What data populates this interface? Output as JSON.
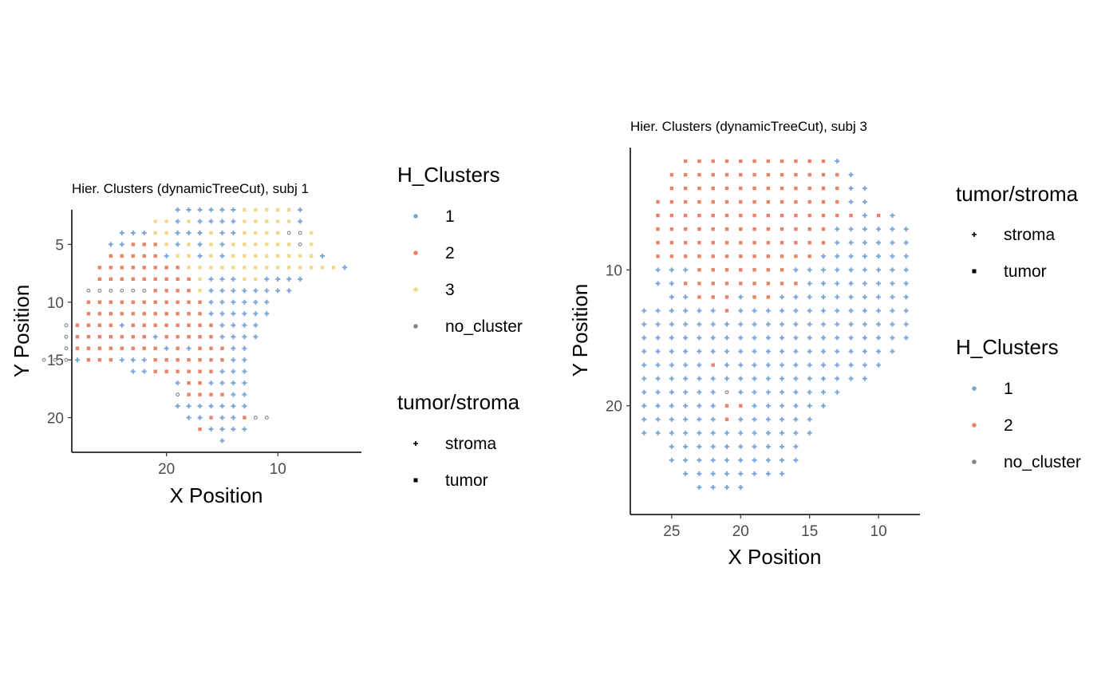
{
  "colors": {
    "1": "#7aa6d8",
    "2": "#e8836a",
    "3": "#f2d98a",
    "no_cluster": "#858585"
  },
  "chart_data": [
    {
      "type": "scatter",
      "title": "Hier. Clusters (dynamicTreeCut), subj 1",
      "xlabel": "X Position",
      "ylabel": "Y Position",
      "x_reversed": true,
      "y_reversed": true,
      "xlim": [
        28.5,
        2.5
      ],
      "ylim": [
        2.0,
        23.0
      ],
      "xticks": [
        20,
        10
      ],
      "yticks": [
        5,
        10,
        15,
        20
      ],
      "legends": [
        {
          "title": "H_Clusters",
          "items": [
            {
              "label": "1",
              "key": "1"
            },
            {
              "label": "2",
              "key": "2"
            },
            {
              "label": "3",
              "key": "3"
            },
            {
              "label": "no_cluster",
              "key": "no_cluster"
            }
          ]
        },
        {
          "title": "tumor/stroma",
          "items": [
            {
              "label": "stroma",
              "shape": "plus"
            },
            {
              "label": "tumor",
              "shape": "square"
            }
          ]
        }
      ],
      "point_rows": [
        {
          "y": 2,
          "x_from": 19,
          "x_to": 8,
          "cluster": "1",
          "overrides": {
            "13": "3",
            "12": "3",
            "11": "3",
            "10": "3",
            "9": "3"
          }
        },
        {
          "y": 3,
          "x_from": 21,
          "x_to": 8,
          "cluster": "1",
          "overrides": {
            "21": "3",
            "20": "3",
            "18": "3",
            "13": "3",
            "12": "3",
            "11": "3",
            "10": "3",
            "9": "3"
          }
        },
        {
          "y": 4,
          "x_from": 24,
          "x_to": 7,
          "cluster": "1",
          "overrides": {
            "21": "3",
            "20": "3",
            "16": "3",
            "13": "3",
            "12": "3",
            "11": "3",
            "10": "3",
            "9": "no_cluster",
            "8": "no_cluster",
            "7": "3"
          }
        },
        {
          "y": 5,
          "x_from": 25,
          "x_to": 7,
          "cluster": "1",
          "overrides": {
            "23": "2",
            "22": "2",
            "21": "2",
            "20": "3",
            "18": "3",
            "16": "3",
            "14": "3",
            "13": "3",
            "12": "3",
            "11": "3",
            "10": "3",
            "9": "3",
            "8": "no_cluster",
            "7": "3"
          }
        },
        {
          "y": 6,
          "x_from": 25,
          "x_to": 6,
          "cluster": "1",
          "overrides": {
            "25": "2",
            "24": "2",
            "23": "2",
            "22": "2",
            "21": "2",
            "19": "3",
            "18": "3",
            "16": "3",
            "14": "3",
            "13": "3",
            "12": "3",
            "11": "3",
            "10": "3",
            "9": "3",
            "8": "3",
            "7": "3"
          }
        },
        {
          "y": 7,
          "x_from": 26,
          "x_to": 4,
          "cluster": "1",
          "overrides": {
            "26": "2",
            "25": "2",
            "24": "2",
            "23": "2",
            "22": "2",
            "21": "2",
            "20": "2",
            "19": "2",
            "18": "3",
            "17": "3",
            "16": "3",
            "15": "3",
            "14": "3",
            "13": "3",
            "12": "3",
            "11": "3",
            "10": "3",
            "9": "3",
            "8": "3",
            "7": "3",
            "6": "3",
            "5": "3"
          }
        },
        {
          "y": 8,
          "x_from": 26,
          "x_to": 8,
          "cluster": "2",
          "overrides": {
            "17": "3",
            "16": "1",
            "15": "1",
            "14": "1",
            "13": "3",
            "12": "3",
            "11": "1",
            "10": "1",
            "9": "1",
            "8": "1"
          }
        },
        {
          "y": 9,
          "x_from": 27,
          "x_to": 9,
          "cluster": "2",
          "overrides": {
            "27": "no_cluster",
            "26": "no_cluster",
            "25": "no_cluster",
            "24": "no_cluster",
            "23": "no_cluster",
            "22": "no_cluster",
            "17": "3",
            "16": "1",
            "15": "1",
            "14": "1",
            "13": "1",
            "12": "1",
            "11": "1",
            "10": "1",
            "9": "1"
          }
        },
        {
          "y": 10,
          "x_from": 27,
          "x_to": 11,
          "cluster": "2",
          "overrides": {
            "16": "1",
            "15": "1",
            "14": "1",
            "13": "1",
            "12": "1",
            "11": "1"
          }
        },
        {
          "y": 11,
          "x_from": 27,
          "x_to": 11,
          "cluster": "2",
          "overrides": {
            "16": "1",
            "15": "1",
            "14": "1",
            "13": "1",
            "12": "1",
            "11": "1"
          }
        },
        {
          "y": 12,
          "x_from": 29,
          "x_to": 12,
          "cluster": "2",
          "overrides": {
            "29": "no_cluster",
            "24": "1",
            "15": "1",
            "14": "1",
            "13": "1",
            "12": "1"
          }
        },
        {
          "y": 13,
          "x_from": 29,
          "x_to": 12,
          "cluster": "2",
          "overrides": {
            "29": "no_cluster",
            "21": "1",
            "15": "1",
            "14": "1",
            "13": "1",
            "12": "1"
          }
        },
        {
          "y": 14,
          "x_from": 29,
          "x_to": 13,
          "cluster": "2",
          "overrides": {
            "29": "no_cluster",
            "20": "1",
            "18": "1",
            "14": "1",
            "13": "1"
          }
        },
        {
          "y": 15,
          "x_from": 31,
          "x_to": 13,
          "cluster": "2",
          "overrides": {
            "31": "no_cluster",
            "30": "no_cluster",
            "29": "no_cluster",
            "28": "1",
            "24": "1",
            "23": "1",
            "22": "1",
            "14": "1",
            "13": "1"
          }
        },
        {
          "y": 16,
          "x_from": 23,
          "x_to": 13,
          "cluster": "2",
          "overrides": {
            "23": "1",
            "22": "1",
            "15": "1",
            "14": "1",
            "13": "1"
          }
        },
        {
          "y": 17,
          "x_from": 19,
          "x_to": 13,
          "cluster": "1",
          "overrides": {
            "18": "2",
            "17": "2"
          }
        },
        {
          "y": 18,
          "x_from": 19,
          "x_to": 13,
          "cluster": "2",
          "overrides": {
            "19": "no_cluster",
            "14": "1",
            "13": "1"
          }
        },
        {
          "y": 19,
          "x_from": 19,
          "x_to": 13,
          "cluster": "1",
          "overrides": {}
        },
        {
          "y": 20,
          "x_from": 18,
          "x_to": 11,
          "cluster": "1",
          "overrides": {
            "16": "2",
            "13": "2",
            "12": "no_cluster",
            "11": "no_cluster"
          }
        },
        {
          "y": 21,
          "x_from": 17,
          "x_to": 13,
          "cluster": "1",
          "overrides": {
            "17": "2"
          }
        },
        {
          "y": 22,
          "x_from": 15,
          "x_to": 15,
          "cluster": "1",
          "overrides": {}
        }
      ]
    },
    {
      "type": "scatter",
      "title": "Hier. Clusters (dynamicTreeCut), subj 3",
      "xlabel": "X Position",
      "ylabel": "Y Position",
      "x_reversed": true,
      "y_reversed": true,
      "xlim": [
        28.0,
        7.0
      ],
      "ylim": [
        1.0,
        28.0
      ],
      "xticks": [
        25,
        20,
        15,
        10
      ],
      "yticks": [
        10,
        20
      ],
      "legends": [
        {
          "title": "tumor/stroma",
          "items": [
            {
              "label": "stroma",
              "shape": "plus"
            },
            {
              "label": "tumor",
              "shape": "square"
            }
          ]
        },
        {
          "title": "H_Clusters",
          "items": [
            {
              "label": "1",
              "key": "1"
            },
            {
              "label": "2",
              "key": "2"
            },
            {
              "label": "no_cluster",
              "key": "no_cluster"
            }
          ]
        }
      ],
      "point_rows": [
        {
          "y": 2,
          "x_from": 24,
          "x_to": 13,
          "cluster": "2",
          "overrides": {
            "13": "1"
          }
        },
        {
          "y": 3,
          "x_from": 25,
          "x_to": 12,
          "cluster": "2",
          "overrides": {
            "12": "1"
          }
        },
        {
          "y": 4,
          "x_from": 25,
          "x_to": 11,
          "cluster": "2",
          "overrides": {
            "12": "1",
            "11": "1"
          }
        },
        {
          "y": 5,
          "x_from": 26,
          "x_to": 11,
          "cluster": "2",
          "overrides": {
            "12": "1",
            "11": "1"
          }
        },
        {
          "y": 6,
          "x_from": 26,
          "x_to": 9,
          "cluster": "2",
          "overrides": {
            "11": "1",
            "9": "1"
          }
        },
        {
          "y": 7,
          "x_from": 26,
          "x_to": 8,
          "cluster": "2",
          "overrides": {
            "13": "1",
            "12": "1",
            "11": "1",
            "10": "1",
            "9": "1",
            "8": "1"
          }
        },
        {
          "y": 8,
          "x_from": 26,
          "x_to": 8,
          "cluster": "2",
          "overrides": {
            "13": "1",
            "12": "1",
            "11": "1",
            "10": "1",
            "9": "1",
            "8": "1"
          }
        },
        {
          "y": 9,
          "x_from": 26,
          "x_to": 8,
          "cluster": "2",
          "overrides": {
            "14": "1",
            "13": "1",
            "12": "1",
            "11": "1",
            "10": "1",
            "9": "1",
            "8": "1"
          }
        },
        {
          "y": 10,
          "x_from": 26,
          "x_to": 8,
          "cluster": "2",
          "overrides": {
            "26": "1",
            "25": "1",
            "24": "1",
            "16": "1",
            "15": "1",
            "14": "1",
            "13": "1",
            "12": "1",
            "11": "1",
            "10": "1",
            "9": "1",
            "8": "1"
          }
        },
        {
          "y": 11,
          "x_from": 26,
          "x_to": 8,
          "cluster": "1",
          "overrides": {
            "24": "2",
            "23": "2",
            "22": "2",
            "21": "2",
            "20": "2",
            "19": "2",
            "18": "2",
            "17": "2",
            "16": "2"
          }
        },
        {
          "y": 12,
          "x_from": 25,
          "x_to": 8,
          "cluster": "1",
          "overrides": {
            "23": "2",
            "22": "2",
            "21": "2",
            "19": "2",
            "18": "2"
          }
        },
        {
          "y": 13,
          "x_from": 27,
          "x_to": 8,
          "cluster": "1",
          "overrides": {
            "21": "2"
          }
        },
        {
          "y": 14,
          "x_from": 27,
          "x_to": 8,
          "cluster": "1",
          "overrides": {}
        },
        {
          "y": 15,
          "x_from": 27,
          "x_to": 8,
          "cluster": "1",
          "overrides": {}
        },
        {
          "y": 16,
          "x_from": 27,
          "x_to": 9,
          "cluster": "1",
          "overrides": {}
        },
        {
          "y": 17,
          "x_from": 27,
          "x_to": 10,
          "cluster": "1",
          "overrides": {
            "22": "2"
          }
        },
        {
          "y": 18,
          "x_from": 27,
          "x_to": 11,
          "cluster": "1",
          "overrides": {}
        },
        {
          "y": 19,
          "x_from": 27,
          "x_to": 13,
          "cluster": "1",
          "overrides": {
            "21": "no_cluster"
          }
        },
        {
          "y": 20,
          "x_from": 27,
          "x_to": 14,
          "cluster": "1",
          "overrides": {
            "21": "2",
            "20": "2"
          }
        },
        {
          "y": 21,
          "x_from": 27,
          "x_to": 15,
          "cluster": "1",
          "overrides": {
            "21": "2"
          }
        },
        {
          "y": 22,
          "x_from": 27,
          "x_to": 15,
          "cluster": "1",
          "overrides": {}
        },
        {
          "y": 23,
          "x_from": 25,
          "x_to": 16,
          "cluster": "1",
          "overrides": {}
        },
        {
          "y": 24,
          "x_from": 25,
          "x_to": 16,
          "cluster": "1",
          "overrides": {}
        },
        {
          "y": 25,
          "x_from": 24,
          "x_to": 17,
          "cluster": "1",
          "overrides": {}
        },
        {
          "y": 26,
          "x_from": 23,
          "x_to": 20,
          "cluster": "1",
          "overrides": {}
        }
      ]
    }
  ]
}
